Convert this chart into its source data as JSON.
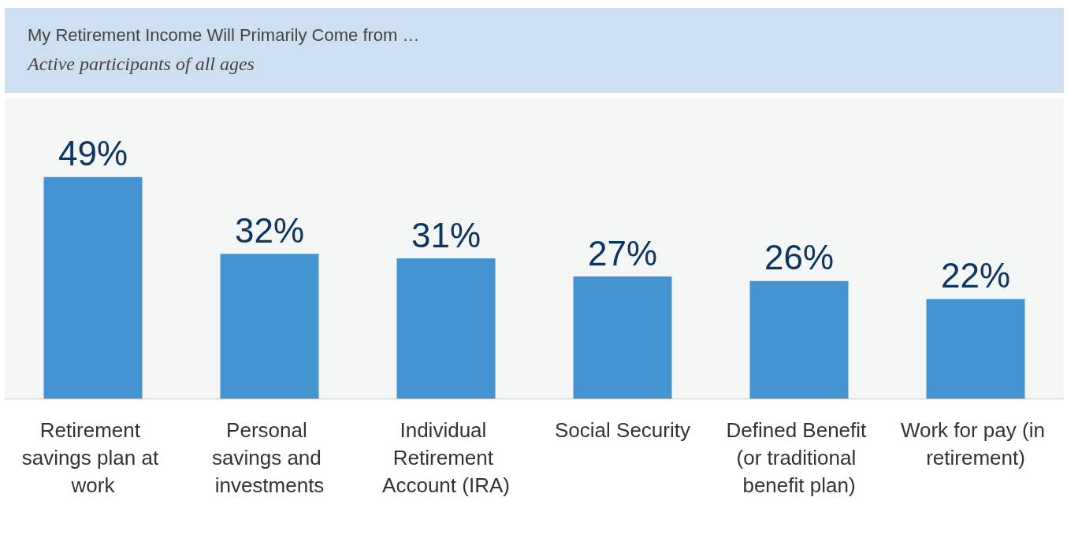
{
  "chart_data": {
    "type": "bar",
    "title": "My Retirement Income Will Primarily Come from …",
    "subtitle": "Active participants of all ages",
    "categories": [
      "Retirement savings plan at work",
      "Personal savings and investments",
      "Individual Retirement Account (IRA)",
      "Social Security",
      "Defined Benefit (or traditional benefit plan)",
      "Work for pay (in retirement)"
    ],
    "values": [
      49,
      32,
      31,
      27,
      26,
      22
    ],
    "value_labels": [
      "49%",
      "32%",
      "31%",
      "27%",
      "26%",
      "22%"
    ],
    "color": "#4394d0"
  }
}
